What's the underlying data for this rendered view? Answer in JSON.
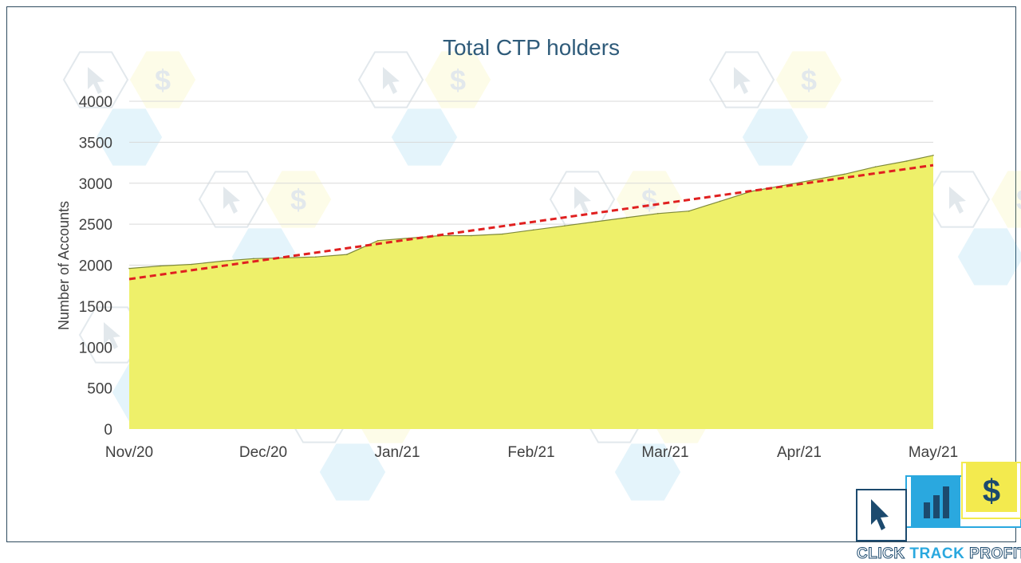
{
  "chart_data": {
    "type": "area",
    "title": "Total CTP holders",
    "xlabel": "",
    "ylabel": "Number of Accounts",
    "ylim": [
      0,
      4000
    ],
    "yticks": [
      0,
      500,
      1000,
      1500,
      2000,
      2500,
      3000,
      3500,
      4000
    ],
    "x_ticks": [
      "Nov/20",
      "Dec/20",
      "Jan/21",
      "Feb/21",
      "Mar/21",
      "Apr/21",
      "May/21"
    ],
    "x_range": [
      "2020-11-01",
      "2021-05-01"
    ],
    "grid": true,
    "series": [
      {
        "type": "area",
        "color": "#eef06a",
        "points": [
          {
            "x": "2020-11-01",
            "y": 1960
          },
          {
            "x": "2020-11-08",
            "y": 1990
          },
          {
            "x": "2020-11-15",
            "y": 2010
          },
          {
            "x": "2020-11-22",
            "y": 2050
          },
          {
            "x": "2020-11-29",
            "y": 2080
          },
          {
            "x": "2020-12-06",
            "y": 2090
          },
          {
            "x": "2020-12-13",
            "y": 2100
          },
          {
            "x": "2020-12-20",
            "y": 2130
          },
          {
            "x": "2020-12-27",
            "y": 2300
          },
          {
            "x": "2021-01-03",
            "y": 2330
          },
          {
            "x": "2021-01-10",
            "y": 2360
          },
          {
            "x": "2021-01-17",
            "y": 2360
          },
          {
            "x": "2021-01-24",
            "y": 2380
          },
          {
            "x": "2021-01-31",
            "y": 2430
          },
          {
            "x": "2021-02-07",
            "y": 2480
          },
          {
            "x": "2021-02-14",
            "y": 2530
          },
          {
            "x": "2021-02-21",
            "y": 2580
          },
          {
            "x": "2021-02-28",
            "y": 2630
          },
          {
            "x": "2021-03-07",
            "y": 2660
          },
          {
            "x": "2021-03-14",
            "y": 2780
          },
          {
            "x": "2021-03-21",
            "y": 2900
          },
          {
            "x": "2021-03-28",
            "y": 2970
          },
          {
            "x": "2021-04-04",
            "y": 3040
          },
          {
            "x": "2021-04-11",
            "y": 3110
          },
          {
            "x": "2021-04-18",
            "y": 3200
          },
          {
            "x": "2021-04-25",
            "y": 3270
          },
          {
            "x": "2021-05-01",
            "y": 3340
          }
        ]
      },
      {
        "type": "trendline",
        "style": "dashed",
        "color": "#e02020",
        "points": [
          {
            "x": "2020-11-01",
            "y": 1830
          },
          {
            "x": "2021-05-01",
            "y": 3220
          }
        ]
      }
    ]
  },
  "logo": {
    "text_parts": [
      "CLICK",
      "TRACK",
      "PROFIT"
    ],
    "icons": [
      "cursor-icon",
      "bar-chart-icon",
      "dollar-icon"
    ],
    "dollar_glyph": "$",
    "colors": {
      "navy": "#1c4a6e",
      "blue": "#2aa8df",
      "yellow": "#f3ea4e"
    }
  },
  "watermark": {
    "icons": [
      "cursor-icon",
      "dollar-icon",
      "bar-chart-icon"
    ],
    "dollar_glyph": "$"
  }
}
